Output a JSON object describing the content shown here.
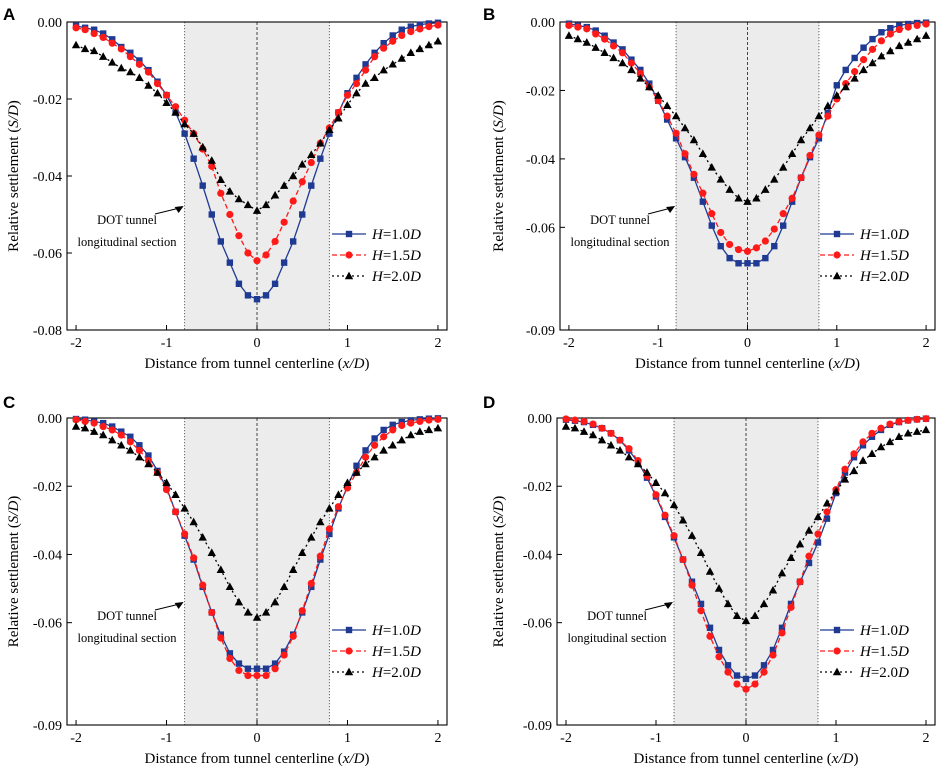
{
  "figure": {
    "panels": [
      "A",
      "B",
      "C",
      "D"
    ]
  },
  "shared": {
    "xlabel_prefix": "Distance from tunnel centerline (",
    "xlabel_var": "x/D",
    "xlabel_suffix": ")",
    "ylabel_prefix": "Relative settlement (",
    "ylabel_var": "S/D",
    "ylabel_suffix": ")",
    "annotation_line1": "DOT tunnel",
    "annotation_line2": "longitudinal section",
    "section_edges": [
      -0.8,
      0.8
    ],
    "centerline": 0,
    "legend_var": "H",
    "legend_labels": [
      "=1.0",
      "=1.5",
      "=2.0"
    ],
    "legend_unit": "D",
    "colors": {
      "H1.0": "#1f3a93",
      "H1.5": "#ff1a1a",
      "H2.0": "#000000",
      "shade": "#ececec"
    },
    "markers": {
      "H1.0": "square",
      "H1.5": "circle",
      "H2.0": "triangle"
    }
  },
  "chart_data": [
    {
      "panel": "A",
      "type": "line",
      "xlabel": "Distance from tunnel centerline (x/D)",
      "ylabel": "Relative settlement (S/D)",
      "xlim": [
        -2.1,
        2.1
      ],
      "ylim": [
        -0.08,
        0.0
      ],
      "xticks": [
        -2,
        -1,
        0,
        1,
        2
      ],
      "yticks": [
        0.0,
        -0.02,
        -0.04,
        -0.06,
        -0.08
      ],
      "ytick_labels": [
        "0.00",
        "-0.02",
        "-0.04",
        "-0.06",
        "-0.08"
      ],
      "x": [
        -2.0,
        -1.9,
        -1.8,
        -1.7,
        -1.6,
        -1.5,
        -1.4,
        -1.3,
        -1.2,
        -1.1,
        -1.0,
        -0.9,
        -0.8,
        -0.7,
        -0.6,
        -0.5,
        -0.4,
        -0.3,
        -0.2,
        -0.1,
        0.0,
        0.1,
        0.2,
        0.3,
        0.4,
        0.5,
        0.6,
        0.7,
        0.8,
        0.9,
        1.0,
        1.1,
        1.2,
        1.3,
        1.4,
        1.5,
        1.6,
        1.7,
        1.8,
        1.9,
        2.0
      ],
      "series": [
        {
          "name": "H=1.0D",
          "values": [
            -0.001,
            -0.0015,
            -0.002,
            -0.003,
            -0.0045,
            -0.0065,
            -0.008,
            -0.01,
            -0.0125,
            -0.0155,
            -0.019,
            -0.0235,
            -0.029,
            -0.0355,
            -0.0425,
            -0.05,
            -0.057,
            -0.0625,
            -0.068,
            -0.071,
            -0.072,
            -0.071,
            -0.068,
            -0.0625,
            -0.057,
            -0.05,
            -0.0425,
            -0.0355,
            -0.029,
            -0.0235,
            -0.0185,
            -0.0145,
            -0.011,
            -0.008,
            -0.0055,
            -0.0035,
            -0.002,
            -0.0012,
            -0.0007,
            -0.0004,
            -0.0002
          ]
        },
        {
          "name": "H=1.5D",
          "values": [
            -0.0015,
            -0.002,
            -0.003,
            -0.004,
            -0.0055,
            -0.007,
            -0.009,
            -0.011,
            -0.013,
            -0.016,
            -0.019,
            -0.022,
            -0.0255,
            -0.029,
            -0.033,
            -0.0375,
            -0.0445,
            -0.05,
            -0.0555,
            -0.06,
            -0.062,
            -0.0605,
            -0.057,
            -0.052,
            -0.0465,
            -0.0415,
            -0.0365,
            -0.0315,
            -0.0275,
            -0.0235,
            -0.019,
            -0.016,
            -0.0125,
            -0.009,
            -0.0068,
            -0.005,
            -0.0035,
            -0.0025,
            -0.0018,
            -0.0012,
            -0.0008
          ]
        },
        {
          "name": "H=2.0D",
          "values": [
            -0.006,
            -0.007,
            -0.0075,
            -0.009,
            -0.0105,
            -0.012,
            -0.013,
            -0.0145,
            -0.0165,
            -0.0185,
            -0.021,
            -0.0235,
            -0.0265,
            -0.029,
            -0.0325,
            -0.036,
            -0.041,
            -0.044,
            -0.046,
            -0.0475,
            -0.049,
            -0.0475,
            -0.045,
            -0.0425,
            -0.04,
            -0.037,
            -0.0345,
            -0.0315,
            -0.028,
            -0.025,
            -0.0215,
            -0.0185,
            -0.016,
            -0.0145,
            -0.0125,
            -0.011,
            -0.0095,
            -0.008,
            -0.007,
            -0.006,
            -0.005
          ]
        }
      ]
    },
    {
      "panel": "B",
      "type": "line",
      "xlabel": "Distance from tunnel centerline (x/D)",
      "ylabel": "Relative settlement (S/D)",
      "xlim": [
        -2.1,
        2.1
      ],
      "ylim": [
        -0.09,
        0.0
      ],
      "xticks": [
        -2,
        -1,
        0,
        1,
        2
      ],
      "yticks": [
        0.0,
        -0.02,
        -0.04,
        -0.06,
        -0.09
      ],
      "ytick_labels": [
        "0.00",
        "-0.02",
        "-0.04",
        "-0.06",
        "-0.09"
      ],
      "x": [
        -2.0,
        -1.9,
        -1.8,
        -1.7,
        -1.6,
        -1.5,
        -1.4,
        -1.3,
        -1.2,
        -1.1,
        -1.0,
        -0.9,
        -0.8,
        -0.7,
        -0.6,
        -0.5,
        -0.4,
        -0.3,
        -0.2,
        -0.1,
        0.0,
        0.1,
        0.2,
        0.3,
        0.4,
        0.5,
        0.6,
        0.7,
        0.8,
        0.9,
        1.0,
        1.1,
        1.2,
        1.3,
        1.4,
        1.5,
        1.6,
        1.7,
        1.8,
        1.9,
        2.0
      ],
      "series": [
        {
          "name": "H=1.0D",
          "values": [
            -0.0005,
            -0.001,
            -0.0015,
            -0.0025,
            -0.004,
            -0.006,
            -0.008,
            -0.011,
            -0.014,
            -0.018,
            -0.023,
            -0.0285,
            -0.034,
            -0.0395,
            -0.0455,
            -0.0525,
            -0.0595,
            -0.0655,
            -0.069,
            -0.0705,
            -0.0705,
            -0.0705,
            -0.069,
            -0.0655,
            -0.0595,
            -0.0525,
            -0.0455,
            -0.0395,
            -0.034,
            -0.0265,
            -0.0185,
            -0.014,
            -0.0105,
            -0.0075,
            -0.005,
            -0.003,
            -0.0018,
            -0.001,
            -0.0006,
            -0.0003,
            -0.0002
          ]
        },
        {
          "name": "H=1.5D",
          "values": [
            -0.001,
            -0.0015,
            -0.002,
            -0.0035,
            -0.005,
            -0.007,
            -0.009,
            -0.012,
            -0.015,
            -0.019,
            -0.023,
            -0.0275,
            -0.0325,
            -0.0385,
            -0.0445,
            -0.05,
            -0.056,
            -0.0615,
            -0.065,
            -0.0665,
            -0.067,
            -0.066,
            -0.064,
            -0.0605,
            -0.056,
            -0.0515,
            -0.0455,
            -0.039,
            -0.033,
            -0.0275,
            -0.0225,
            -0.018,
            -0.0145,
            -0.011,
            -0.008,
            -0.0055,
            -0.0035,
            -0.0022,
            -0.0015,
            -0.001,
            -0.0006
          ]
        },
        {
          "name": "H=2.0D",
          "values": [
            -0.004,
            -0.005,
            -0.006,
            -0.0075,
            -0.009,
            -0.0105,
            -0.012,
            -0.014,
            -0.0165,
            -0.019,
            -0.0215,
            -0.0245,
            -0.0275,
            -0.031,
            -0.0345,
            -0.0385,
            -0.0425,
            -0.046,
            -0.049,
            -0.0515,
            -0.0525,
            -0.0515,
            -0.049,
            -0.046,
            -0.0425,
            -0.0385,
            -0.0345,
            -0.031,
            -0.0275,
            -0.0245,
            -0.0215,
            -0.019,
            -0.0165,
            -0.014,
            -0.012,
            -0.01,
            -0.0085,
            -0.007,
            -0.006,
            -0.005,
            -0.004
          ]
        }
      ]
    },
    {
      "panel": "C",
      "type": "line",
      "xlabel": "Distance from tunnel centerline (x/D)",
      "ylabel": "Relative settlement (S/D)",
      "xlim": [
        -2.1,
        2.1
      ],
      "ylim": [
        -0.09,
        0.0
      ],
      "xticks": [
        -2,
        -1,
        0,
        1,
        2
      ],
      "yticks": [
        0.0,
        -0.02,
        -0.04,
        -0.06,
        -0.09
      ],
      "ytick_labels": [
        "0.00",
        "-0.02",
        "-0.04",
        "-0.06",
        "-0.09"
      ],
      "x": [
        -2.0,
        -1.9,
        -1.8,
        -1.7,
        -1.6,
        -1.5,
        -1.4,
        -1.3,
        -1.2,
        -1.1,
        -1.0,
        -0.9,
        -0.8,
        -0.7,
        -0.6,
        -0.5,
        -0.4,
        -0.3,
        -0.2,
        -0.1,
        0.0,
        0.1,
        0.2,
        0.3,
        0.4,
        0.5,
        0.6,
        0.7,
        0.8,
        0.9,
        1.0,
        1.1,
        1.2,
        1.3,
        1.4,
        1.5,
        1.6,
        1.7,
        1.8,
        1.9,
        2.0
      ],
      "series": [
        {
          "name": "H=1.0D",
          "values": [
            -0.0003,
            -0.0005,
            -0.001,
            -0.0015,
            -0.0025,
            -0.004,
            -0.0055,
            -0.008,
            -0.011,
            -0.0155,
            -0.0205,
            -0.0275,
            -0.0345,
            -0.0415,
            -0.0495,
            -0.057,
            -0.0635,
            -0.069,
            -0.072,
            -0.0735,
            -0.0735,
            -0.0735,
            -0.072,
            -0.0685,
            -0.0635,
            -0.057,
            -0.0495,
            -0.0415,
            -0.034,
            -0.0265,
            -0.02,
            -0.014,
            -0.0095,
            -0.006,
            -0.0035,
            -0.002,
            -0.0012,
            -0.0007,
            -0.0004,
            -0.0002,
            -0.0001
          ]
        },
        {
          "name": "H=1.5D",
          "values": [
            -0.0005,
            -0.001,
            -0.0015,
            -0.0025,
            -0.0035,
            -0.005,
            -0.007,
            -0.0095,
            -0.0125,
            -0.016,
            -0.021,
            -0.0275,
            -0.034,
            -0.041,
            -0.049,
            -0.057,
            -0.0645,
            -0.0705,
            -0.074,
            -0.0755,
            -0.0755,
            -0.0755,
            -0.0735,
            -0.0695,
            -0.064,
            -0.0565,
            -0.0485,
            -0.0405,
            -0.0325,
            -0.026,
            -0.0205,
            -0.016,
            -0.0115,
            -0.008,
            -0.0055,
            -0.0035,
            -0.0022,
            -0.0015,
            -0.001,
            -0.0006,
            -0.0004
          ]
        },
        {
          "name": "H=2.0D",
          "values": [
            -0.0025,
            -0.003,
            -0.004,
            -0.005,
            -0.0065,
            -0.008,
            -0.0095,
            -0.0115,
            -0.0135,
            -0.016,
            -0.019,
            -0.0225,
            -0.0265,
            -0.0305,
            -0.035,
            -0.0395,
            -0.0445,
            -0.0495,
            -0.054,
            -0.057,
            -0.0585,
            -0.057,
            -0.054,
            -0.0495,
            -0.0445,
            -0.0395,
            -0.035,
            -0.0305,
            -0.0265,
            -0.0225,
            -0.019,
            -0.016,
            -0.0135,
            -0.0115,
            -0.0095,
            -0.008,
            -0.0065,
            -0.005,
            -0.004,
            -0.0035,
            -0.003
          ]
        }
      ]
    },
    {
      "panel": "D",
      "type": "line",
      "xlabel": "Distance from tunnel centerline (x/D)",
      "ylabel": "Relative settlement (S/D)",
      "xlim": [
        -2.1,
        2.1
      ],
      "ylim": [
        -0.09,
        0.0
      ],
      "xticks": [
        -2,
        -1,
        0,
        1,
        2
      ],
      "yticks": [
        0.0,
        -0.02,
        -0.04,
        -0.06,
        -0.09
      ],
      "ytick_labels": [
        "0.00",
        "-0.02",
        "-0.04",
        "-0.06",
        "-0.09"
      ],
      "x": [
        -2.0,
        -1.9,
        -1.8,
        -1.7,
        -1.6,
        -1.5,
        -1.4,
        -1.3,
        -1.2,
        -1.1,
        -1.0,
        -0.9,
        -0.8,
        -0.7,
        -0.6,
        -0.5,
        -0.4,
        -0.3,
        -0.2,
        -0.1,
        0.0,
        0.1,
        0.2,
        0.3,
        0.4,
        0.5,
        0.6,
        0.7,
        0.8,
        0.9,
        1.0,
        1.1,
        1.2,
        1.3,
        1.4,
        1.5,
        1.6,
        1.7,
        1.8,
        1.9,
        2.0
      ],
      "series": [
        {
          "name": "H=1.0D",
          "values": [
            -0.0005,
            -0.0008,
            -0.0012,
            -0.002,
            -0.003,
            -0.0045,
            -0.0065,
            -0.0095,
            -0.013,
            -0.0175,
            -0.023,
            -0.029,
            -0.035,
            -0.0415,
            -0.048,
            -0.0545,
            -0.0615,
            -0.068,
            -0.0725,
            -0.0755,
            -0.0765,
            -0.0755,
            -0.0725,
            -0.068,
            -0.0615,
            -0.0545,
            -0.048,
            -0.0425,
            -0.0365,
            -0.0295,
            -0.022,
            -0.016,
            -0.0115,
            -0.008,
            -0.0055,
            -0.0035,
            -0.002,
            -0.0012,
            -0.0007,
            -0.0004,
            -0.0002
          ]
        },
        {
          "name": "H=1.5D",
          "values": [
            -0.0003,
            -0.0006,
            -0.001,
            -0.0018,
            -0.003,
            -0.0045,
            -0.0065,
            -0.009,
            -0.0125,
            -0.017,
            -0.0225,
            -0.0285,
            -0.0345,
            -0.0415,
            -0.049,
            -0.0565,
            -0.064,
            -0.07,
            -0.0745,
            -0.078,
            -0.0795,
            -0.078,
            -0.0745,
            -0.0695,
            -0.063,
            -0.0555,
            -0.048,
            -0.0405,
            -0.034,
            -0.0275,
            -0.021,
            -0.015,
            -0.0105,
            -0.007,
            -0.0045,
            -0.003,
            -0.0018,
            -0.0011,
            -0.0007,
            -0.0004,
            -0.0002
          ]
        },
        {
          "name": "H=2.0D",
          "values": [
            -0.0025,
            -0.003,
            -0.004,
            -0.005,
            -0.0065,
            -0.008,
            -0.0095,
            -0.0115,
            -0.0135,
            -0.016,
            -0.019,
            -0.022,
            -0.0255,
            -0.03,
            -0.0345,
            -0.0395,
            -0.045,
            -0.05,
            -0.0545,
            -0.058,
            -0.0595,
            -0.058,
            -0.0545,
            -0.0505,
            -0.0455,
            -0.041,
            -0.037,
            -0.033,
            -0.029,
            -0.025,
            -0.0215,
            -0.018,
            -0.0155,
            -0.0125,
            -0.0105,
            -0.0085,
            -0.007,
            -0.0055,
            -0.0045,
            -0.004,
            -0.0035
          ]
        }
      ]
    }
  ]
}
